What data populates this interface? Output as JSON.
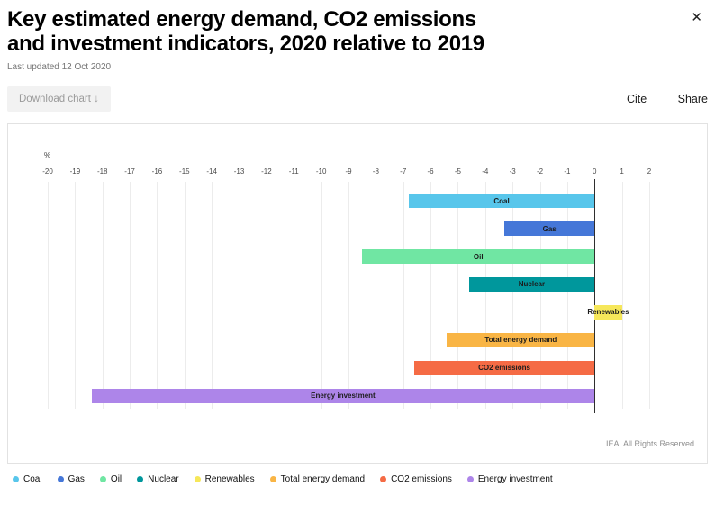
{
  "header": {
    "title_line1": "Key estimated energy demand, CO2 emissions",
    "title_line2": "and investment indicators, 2020 relative to 2019",
    "last_updated": "Last updated 12 Oct 2020",
    "close_icon": "✕"
  },
  "toolbar": {
    "download_label": "Download chart",
    "download_arrow": "↓",
    "cite_label": "Cite",
    "share_label": "Share"
  },
  "chart_data": {
    "type": "bar",
    "orientation": "horizontal",
    "title": "Key estimated energy demand, CO2 emissions and investment indicators, 2020 relative to 2019",
    "unit_label": "%",
    "xlim": [
      -20,
      2
    ],
    "tick_step": 1,
    "grid": true,
    "legend_position": "bottom",
    "categories": [
      "Coal",
      "Gas",
      "Oil",
      "Nuclear",
      "Renewables",
      "Total energy demand",
      "CO2 emissions",
      "Energy investment"
    ],
    "values": [
      -6.8,
      -3.3,
      -8.5,
      -4.6,
      1.0,
      -5.4,
      -6.6,
      -18.4
    ],
    "colors": [
      "#58c6eb",
      "#4577d8",
      "#70e6a3",
      "#00979c",
      "#f6e75a",
      "#f9b545",
      "#f56b45",
      "#ad85e9"
    ],
    "note": "IEA. All Rights Reserved"
  }
}
